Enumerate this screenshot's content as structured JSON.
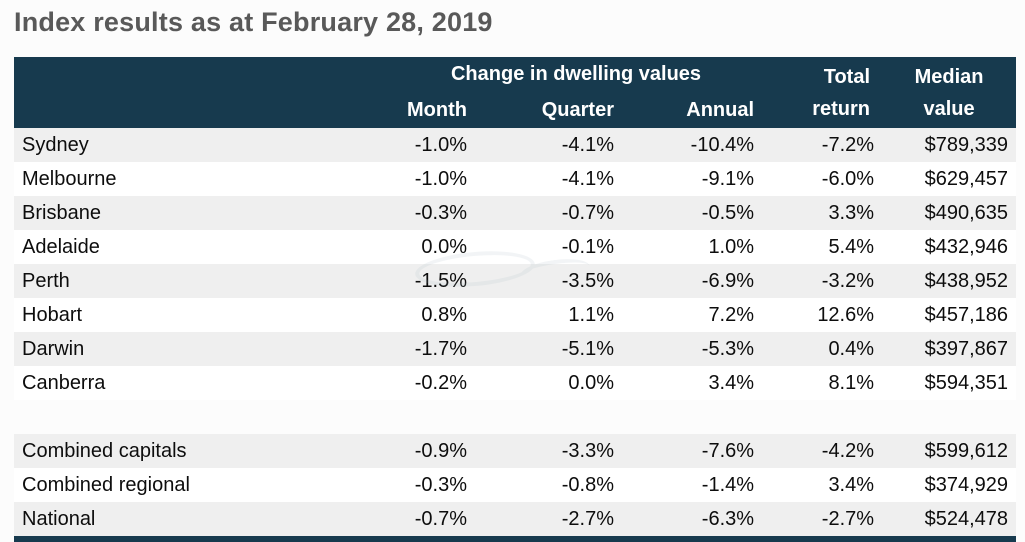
{
  "title": "Index results as at February 28, 2019",
  "colors": {
    "header_bg": "#173a4e",
    "header_text": "#ffffff",
    "row_alt_bg": "#efefef",
    "title_text": "#595959",
    "body_text": "#0d0d0d"
  },
  "table": {
    "header": {
      "group": "Change in dwelling values",
      "month": "Month",
      "quarter": "Quarter",
      "annual": "Annual",
      "total_return": [
        "Total",
        "return"
      ],
      "median_value": [
        "Median",
        "value"
      ]
    },
    "rows": [
      {
        "name": "Sydney",
        "month": "-1.0%",
        "quarter": "-4.1%",
        "annual": "-10.4%",
        "total_return": "-7.2%",
        "median_value": "$789,339"
      },
      {
        "name": "Melbourne",
        "month": "-1.0%",
        "quarter": "-4.1%",
        "annual": "-9.1%",
        "total_return": "-6.0%",
        "median_value": "$629,457"
      },
      {
        "name": "Brisbane",
        "month": "-0.3%",
        "quarter": "-0.7%",
        "annual": "-0.5%",
        "total_return": "3.3%",
        "median_value": "$490,635"
      },
      {
        "name": "Adelaide",
        "month": "0.0%",
        "quarter": "-0.1%",
        "annual": "1.0%",
        "total_return": "5.4%",
        "median_value": "$432,946"
      },
      {
        "name": "Perth",
        "month": "-1.5%",
        "quarter": "-3.5%",
        "annual": "-6.9%",
        "total_return": "-3.2%",
        "median_value": "$438,952"
      },
      {
        "name": "Hobart",
        "month": "0.8%",
        "quarter": "1.1%",
        "annual": "7.2%",
        "total_return": "12.6%",
        "median_value": "$457,186"
      },
      {
        "name": "Darwin",
        "month": "-1.7%",
        "quarter": "-5.1%",
        "annual": "-5.3%",
        "total_return": "0.4%",
        "median_value": "$397,867"
      },
      {
        "name": "Canberra",
        "month": "-0.2%",
        "quarter": "0.0%",
        "annual": "3.4%",
        "total_return": "8.1%",
        "median_value": "$594,351"
      }
    ],
    "summary_rows": [
      {
        "name": "Combined capitals",
        "month": "-0.9%",
        "quarter": "-3.3%",
        "annual": "-7.6%",
        "total_return": "-4.2%",
        "median_value": "$599,612"
      },
      {
        "name": "Combined regional",
        "month": "-0.3%",
        "quarter": "-0.8%",
        "annual": "-1.4%",
        "total_return": "3.4%",
        "median_value": "$374,929"
      },
      {
        "name": "National",
        "month": "-0.7%",
        "quarter": "-2.7%",
        "annual": "-6.3%",
        "total_return": "-2.7%",
        "median_value": "$524,478"
      }
    ]
  }
}
